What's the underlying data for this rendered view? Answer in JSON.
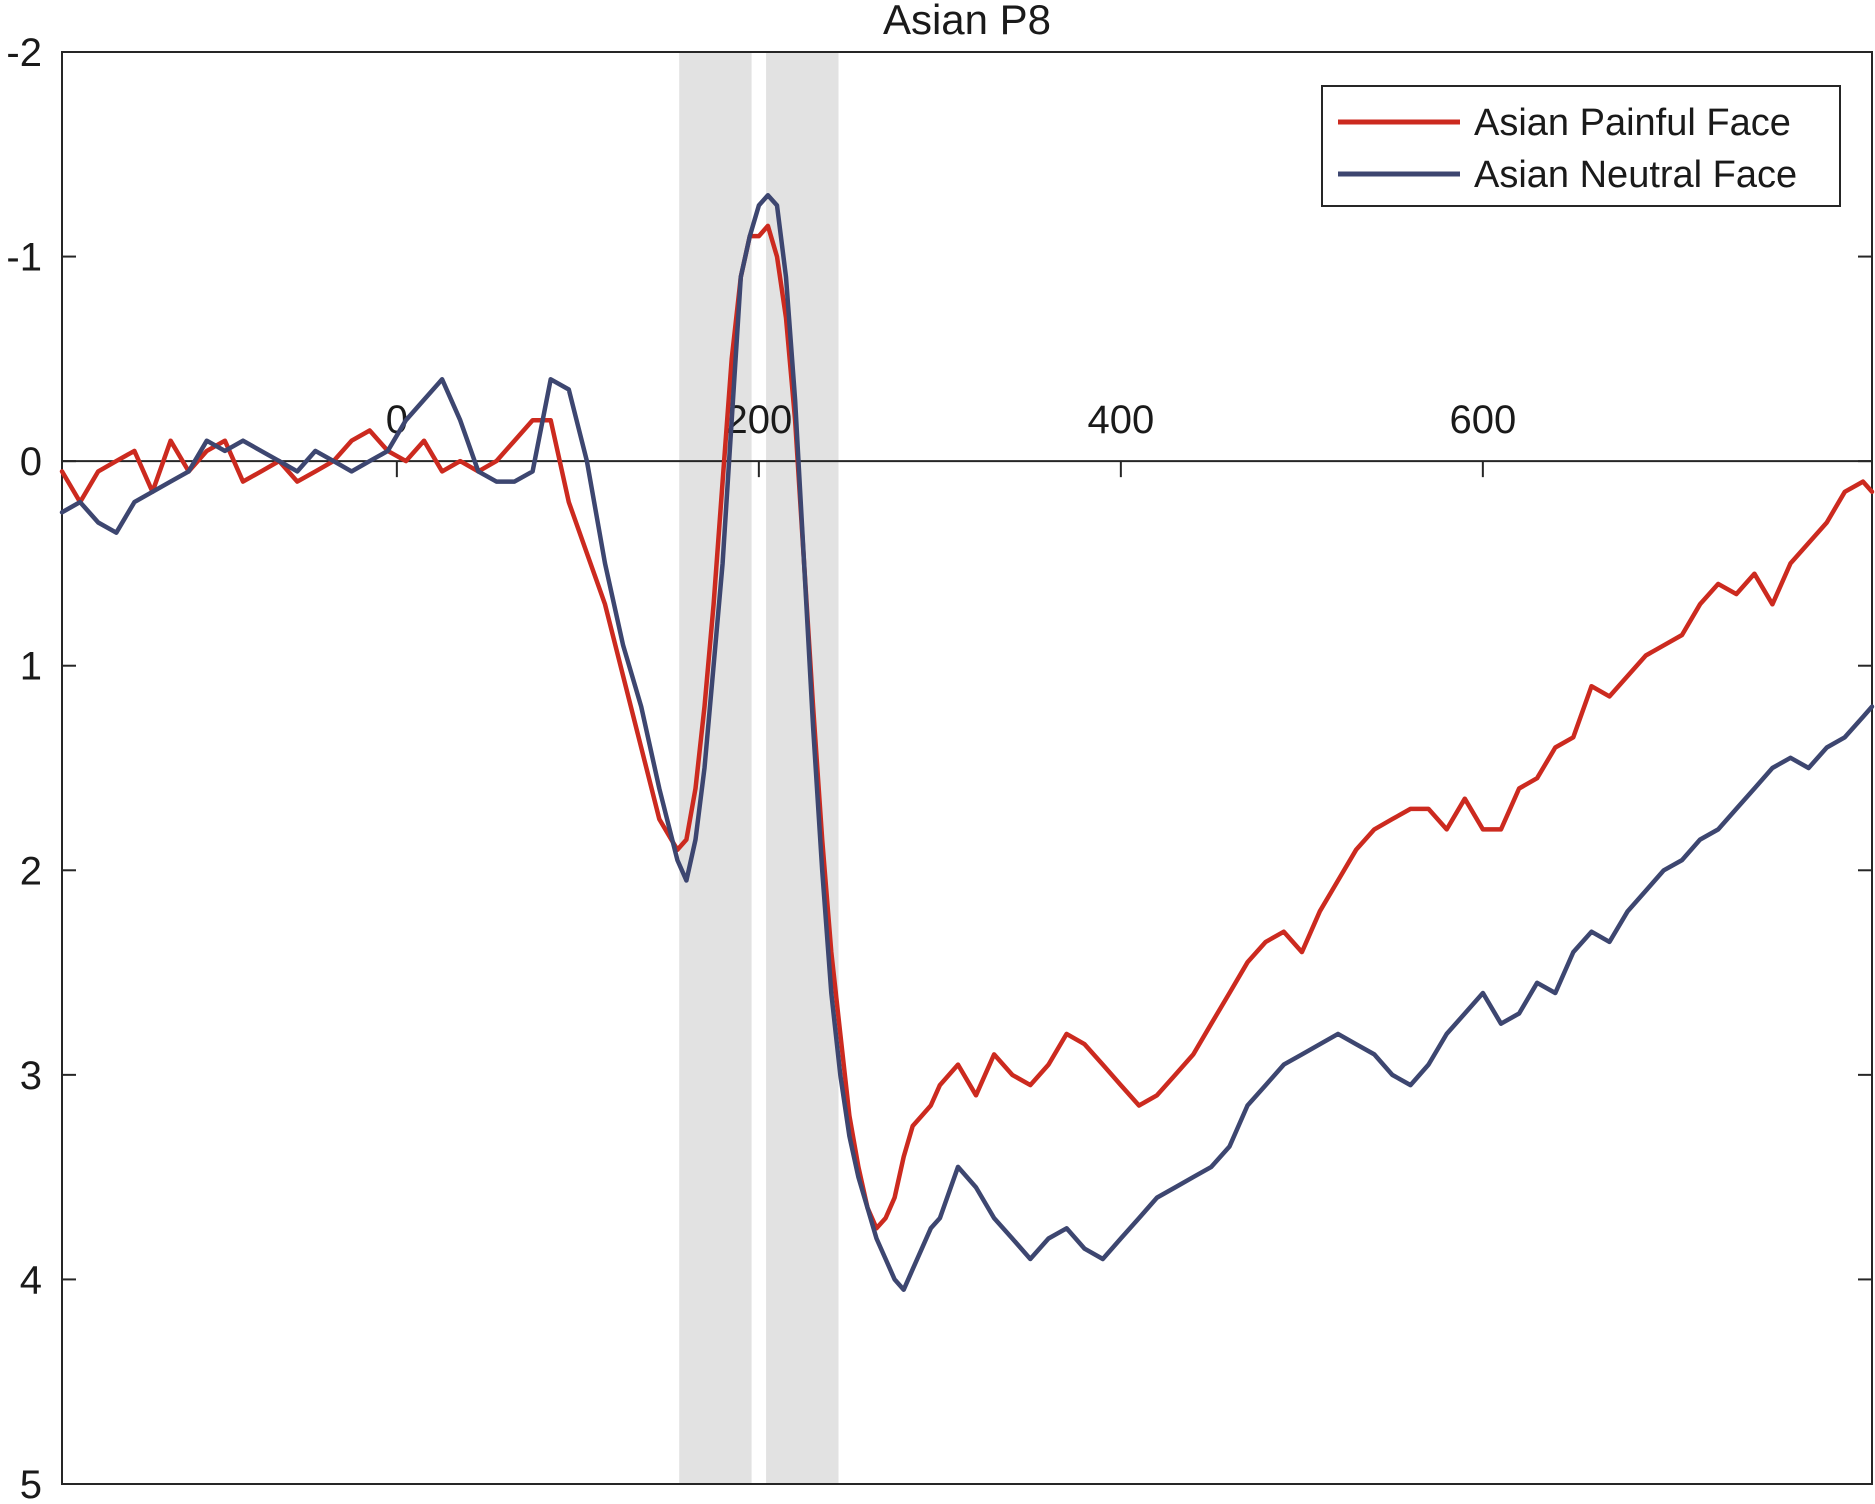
{
  "chart_data": {
    "type": "line",
    "title": "Asian P8",
    "xlabel": "",
    "ylabel": "",
    "xlim": [
      -185,
      815
    ],
    "ylim": [
      5,
      -2
    ],
    "y_axis_reversed": true,
    "grid": false,
    "legend_position": "top-right",
    "x_ticks": [
      0,
      200,
      400,
      600
    ],
    "x_tick_labels": [
      "0",
      "200",
      "400",
      "600"
    ],
    "y_ticks": [
      -2,
      -1,
      0,
      1,
      2,
      3,
      4,
      5
    ],
    "y_tick_labels": [
      "-2",
      "-1",
      "0",
      "1",
      "2",
      "3",
      "4",
      "5"
    ],
    "shaded_windows": [
      {
        "x_start": 156,
        "x_end": 196
      },
      {
        "x_start": 204,
        "x_end": 244
      }
    ],
    "series": [
      {
        "name": "Asian Painful Face",
        "color": "#cc2a1f",
        "x": [
          -185,
          -175,
          -165,
          -155,
          -145,
          -135,
          -125,
          -115,
          -105,
          -95,
          -85,
          -75,
          -65,
          -55,
          -45,
          -35,
          -25,
          -15,
          -5,
          5,
          15,
          25,
          35,
          45,
          55,
          65,
          75,
          85,
          95,
          105,
          115,
          125,
          135,
          145,
          155,
          160,
          165,
          170,
          175,
          180,
          185,
          190,
          195,
          200,
          205,
          210,
          215,
          220,
          225,
          230,
          235,
          240,
          245,
          250,
          255,
          260,
          265,
          270,
          275,
          280,
          285,
          290,
          295,
          300,
          310,
          320,
          330,
          340,
          350,
          360,
          370,
          380,
          390,
          400,
          410,
          420,
          430,
          440,
          450,
          460,
          470,
          480,
          490,
          500,
          510,
          520,
          530,
          540,
          550,
          560,
          570,
          580,
          590,
          600,
          610,
          620,
          630,
          640,
          650,
          660,
          670,
          680,
          690,
          700,
          710,
          720,
          730,
          740,
          750,
          760,
          770,
          780,
          790,
          800,
          810,
          815
        ],
        "y": [
          0.05,
          0.2,
          0.05,
          0.0,
          -0.05,
          0.15,
          -0.1,
          0.05,
          -0.05,
          -0.1,
          0.1,
          0.05,
          0.0,
          0.1,
          0.05,
          0.0,
          -0.1,
          -0.15,
          -0.05,
          0.0,
          -0.1,
          0.05,
          0.0,
          0.05,
          0.0,
          -0.1,
          -0.2,
          -0.2,
          0.2,
          0.45,
          0.7,
          1.05,
          1.4,
          1.75,
          1.9,
          1.85,
          1.6,
          1.2,
          0.7,
          0.1,
          -0.5,
          -0.9,
          -1.1,
          -1.1,
          -1.15,
          -1.0,
          -0.7,
          -0.2,
          0.5,
          1.2,
          1.85,
          2.4,
          2.8,
          3.2,
          3.45,
          3.65,
          3.75,
          3.7,
          3.6,
          3.4,
          3.25,
          3.2,
          3.15,
          3.05,
          2.95,
          3.1,
          2.9,
          3.0,
          3.05,
          2.95,
          2.8,
          2.85,
          2.95,
          3.05,
          3.15,
          3.1,
          3.0,
          2.9,
          2.75,
          2.6,
          2.45,
          2.35,
          2.3,
          2.4,
          2.2,
          2.05,
          1.9,
          1.8,
          1.75,
          1.7,
          1.7,
          1.8,
          1.65,
          1.8,
          1.8,
          1.6,
          1.55,
          1.4,
          1.35,
          1.1,
          1.15,
          1.05,
          0.95,
          0.9,
          0.85,
          0.7,
          0.6,
          0.65,
          0.55,
          0.7,
          0.5,
          0.4,
          0.3,
          0.15,
          0.1,
          0.15
        ]
      },
      {
        "name": "Asian Neutral Face",
        "color": "#3d4670",
        "x": [
          -185,
          -175,
          -165,
          -155,
          -145,
          -135,
          -125,
          -115,
          -105,
          -95,
          -85,
          -75,
          -65,
          -55,
          -45,
          -35,
          -25,
          -15,
          -5,
          5,
          15,
          25,
          35,
          45,
          55,
          65,
          75,
          85,
          95,
          105,
          115,
          125,
          135,
          145,
          155,
          160,
          165,
          170,
          175,
          180,
          185,
          190,
          195,
          200,
          205,
          210,
          215,
          220,
          225,
          230,
          235,
          240,
          245,
          250,
          255,
          260,
          265,
          270,
          275,
          280,
          285,
          290,
          295,
          300,
          310,
          320,
          330,
          340,
          350,
          360,
          370,
          380,
          390,
          400,
          410,
          420,
          430,
          440,
          450,
          460,
          470,
          480,
          490,
          500,
          510,
          520,
          530,
          540,
          550,
          560,
          570,
          580,
          590,
          600,
          610,
          620,
          630,
          640,
          650,
          660,
          670,
          680,
          690,
          700,
          710,
          720,
          730,
          740,
          750,
          760,
          770,
          780,
          790,
          800,
          810,
          815
        ],
        "y": [
          0.25,
          0.2,
          0.3,
          0.35,
          0.2,
          0.15,
          0.1,
          0.05,
          -0.1,
          -0.05,
          -0.1,
          -0.05,
          0.0,
          0.05,
          -0.05,
          0.0,
          0.05,
          0.0,
          -0.05,
          -0.2,
          -0.3,
          -0.4,
          -0.2,
          0.05,
          0.1,
          0.1,
          0.05,
          -0.4,
          -0.35,
          0.0,
          0.5,
          0.9,
          1.2,
          1.6,
          1.95,
          2.05,
          1.85,
          1.5,
          1.0,
          0.5,
          -0.2,
          -0.9,
          -1.1,
          -1.25,
          -1.3,
          -1.25,
          -0.9,
          -0.3,
          0.5,
          1.3,
          2.0,
          2.6,
          3.0,
          3.3,
          3.5,
          3.65,
          3.8,
          3.9,
          4.0,
          4.05,
          3.95,
          3.85,
          3.75,
          3.7,
          3.45,
          3.55,
          3.7,
          3.8,
          3.9,
          3.8,
          3.75,
          3.85,
          3.9,
          3.8,
          3.7,
          3.6,
          3.55,
          3.5,
          3.45,
          3.35,
          3.15,
          3.05,
          2.95,
          2.9,
          2.85,
          2.8,
          2.85,
          2.9,
          3.0,
          3.05,
          2.95,
          2.8,
          2.7,
          2.6,
          2.75,
          2.7,
          2.55,
          2.6,
          2.4,
          2.3,
          2.35,
          2.2,
          2.1,
          2.0,
          1.95,
          1.85,
          1.8,
          1.7,
          1.6,
          1.5,
          1.45,
          1.5,
          1.4,
          1.35,
          1.25,
          1.2
        ]
      }
    ]
  }
}
